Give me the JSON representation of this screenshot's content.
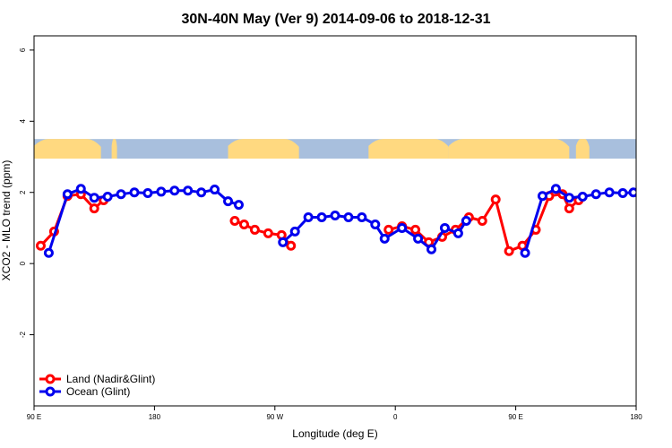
{
  "chart_data": {
    "type": "line",
    "title": "30N-40N May (Ver 9)   2014-09-06 to 2018-12-31",
    "xlabel": "Longitude (deg E)",
    "ylabel": "XCO2 - MLO trend (ppm)",
    "xlim": [
      90,
      540
    ],
    "ylim": [
      -4,
      6.4
    ],
    "x_ticks": [
      {
        "value": 90,
        "label": "90 E"
      },
      {
        "value": 180,
        "label": "180"
      },
      {
        "value": 270,
        "label": "90 W"
      },
      {
        "value": 360,
        "label": "0"
      },
      {
        "value": 450,
        "label": "90 E"
      },
      {
        "value": 540,
        "label": "180"
      }
    ],
    "y_ticks": [
      {
        "value": -2,
        "label": "-2"
      },
      {
        "value": 0,
        "label": "0"
      },
      {
        "value": 2,
        "label": "2"
      },
      {
        "value": 4,
        "label": "4"
      },
      {
        "value": 6,
        "label": "6"
      }
    ],
    "legend_position": "bottom-left",
    "land_band": {
      "y_min": 2.95,
      "y_max": 3.5,
      "land_color": "#ffd980",
      "ocean_color": "#a8bfdd"
    },
    "series": [
      {
        "name": "Land (Nadir&Glint)",
        "color": "#ff0000",
        "segments": [
          [
            [
              95,
              0.5
            ],
            [
              105,
              0.9
            ],
            [
              115,
              1.9
            ],
            [
              125,
              1.95
            ],
            [
              135,
              1.55
            ],
            [
              142,
              1.78
            ]
          ],
          [
            [
              240,
              1.2
            ],
            [
              247,
              1.1
            ],
            [
              255,
              0.95
            ],
            [
              265,
              0.85
            ],
            [
              275,
              0.8
            ],
            [
              282,
              0.5
            ]
          ],
          [
            [
              355,
              0.95
            ],
            [
              365,
              1.05
            ],
            [
              375,
              0.95
            ],
            [
              385,
              0.6
            ],
            [
              395,
              0.75
            ],
            [
              405,
              0.95
            ],
            [
              415,
              1.3
            ],
            [
              425,
              1.2
            ],
            [
              435,
              1.8
            ],
            [
              445,
              0.35
            ],
            [
              455,
              0.5
            ],
            [
              465,
              0.95
            ],
            [
              475,
              1.9
            ],
            [
              485,
              1.95
            ],
            [
              490,
              1.55
            ],
            [
              497,
              1.78
            ]
          ]
        ]
      },
      {
        "name": "Ocean (Glint)",
        "color": "#0000ee",
        "segments": [
          [
            [
              101,
              0.3
            ],
            [
              115,
              1.95
            ],
            [
              125,
              2.1
            ],
            [
              135,
              1.85
            ],
            [
              145,
              1.88
            ],
            [
              155,
              1.95
            ],
            [
              165,
              2.0
            ],
            [
              175,
              1.98
            ],
            [
              185,
              2.02
            ],
            [
              195,
              2.05
            ],
            [
              205,
              2.05
            ],
            [
              215,
              2.0
            ],
            [
              225,
              2.08
            ],
            [
              235,
              1.75
            ],
            [
              243,
              1.65
            ]
          ],
          [
            [
              276,
              0.6
            ],
            [
              285,
              0.9
            ],
            [
              295,
              1.3
            ],
            [
              305,
              1.3
            ],
            [
              315,
              1.35
            ],
            [
              325,
              1.3
            ],
            [
              335,
              1.3
            ],
            [
              345,
              1.1
            ],
            [
              352,
              0.7
            ],
            [
              365,
              1.0
            ],
            [
              377,
              0.7
            ],
            [
              387,
              0.4
            ],
            [
              397,
              1.0
            ],
            [
              407,
              0.85
            ],
            [
              413,
              1.2
            ]
          ],
          [
            [
              457,
              0.3
            ],
            [
              470,
              1.9
            ],
            [
              480,
              2.1
            ],
            [
              490,
              1.85
            ],
            [
              500,
              1.88
            ],
            [
              510,
              1.95
            ],
            [
              520,
              2.0
            ],
            [
              530,
              1.98
            ],
            [
              538,
              2.0
            ]
          ]
        ]
      }
    ]
  }
}
